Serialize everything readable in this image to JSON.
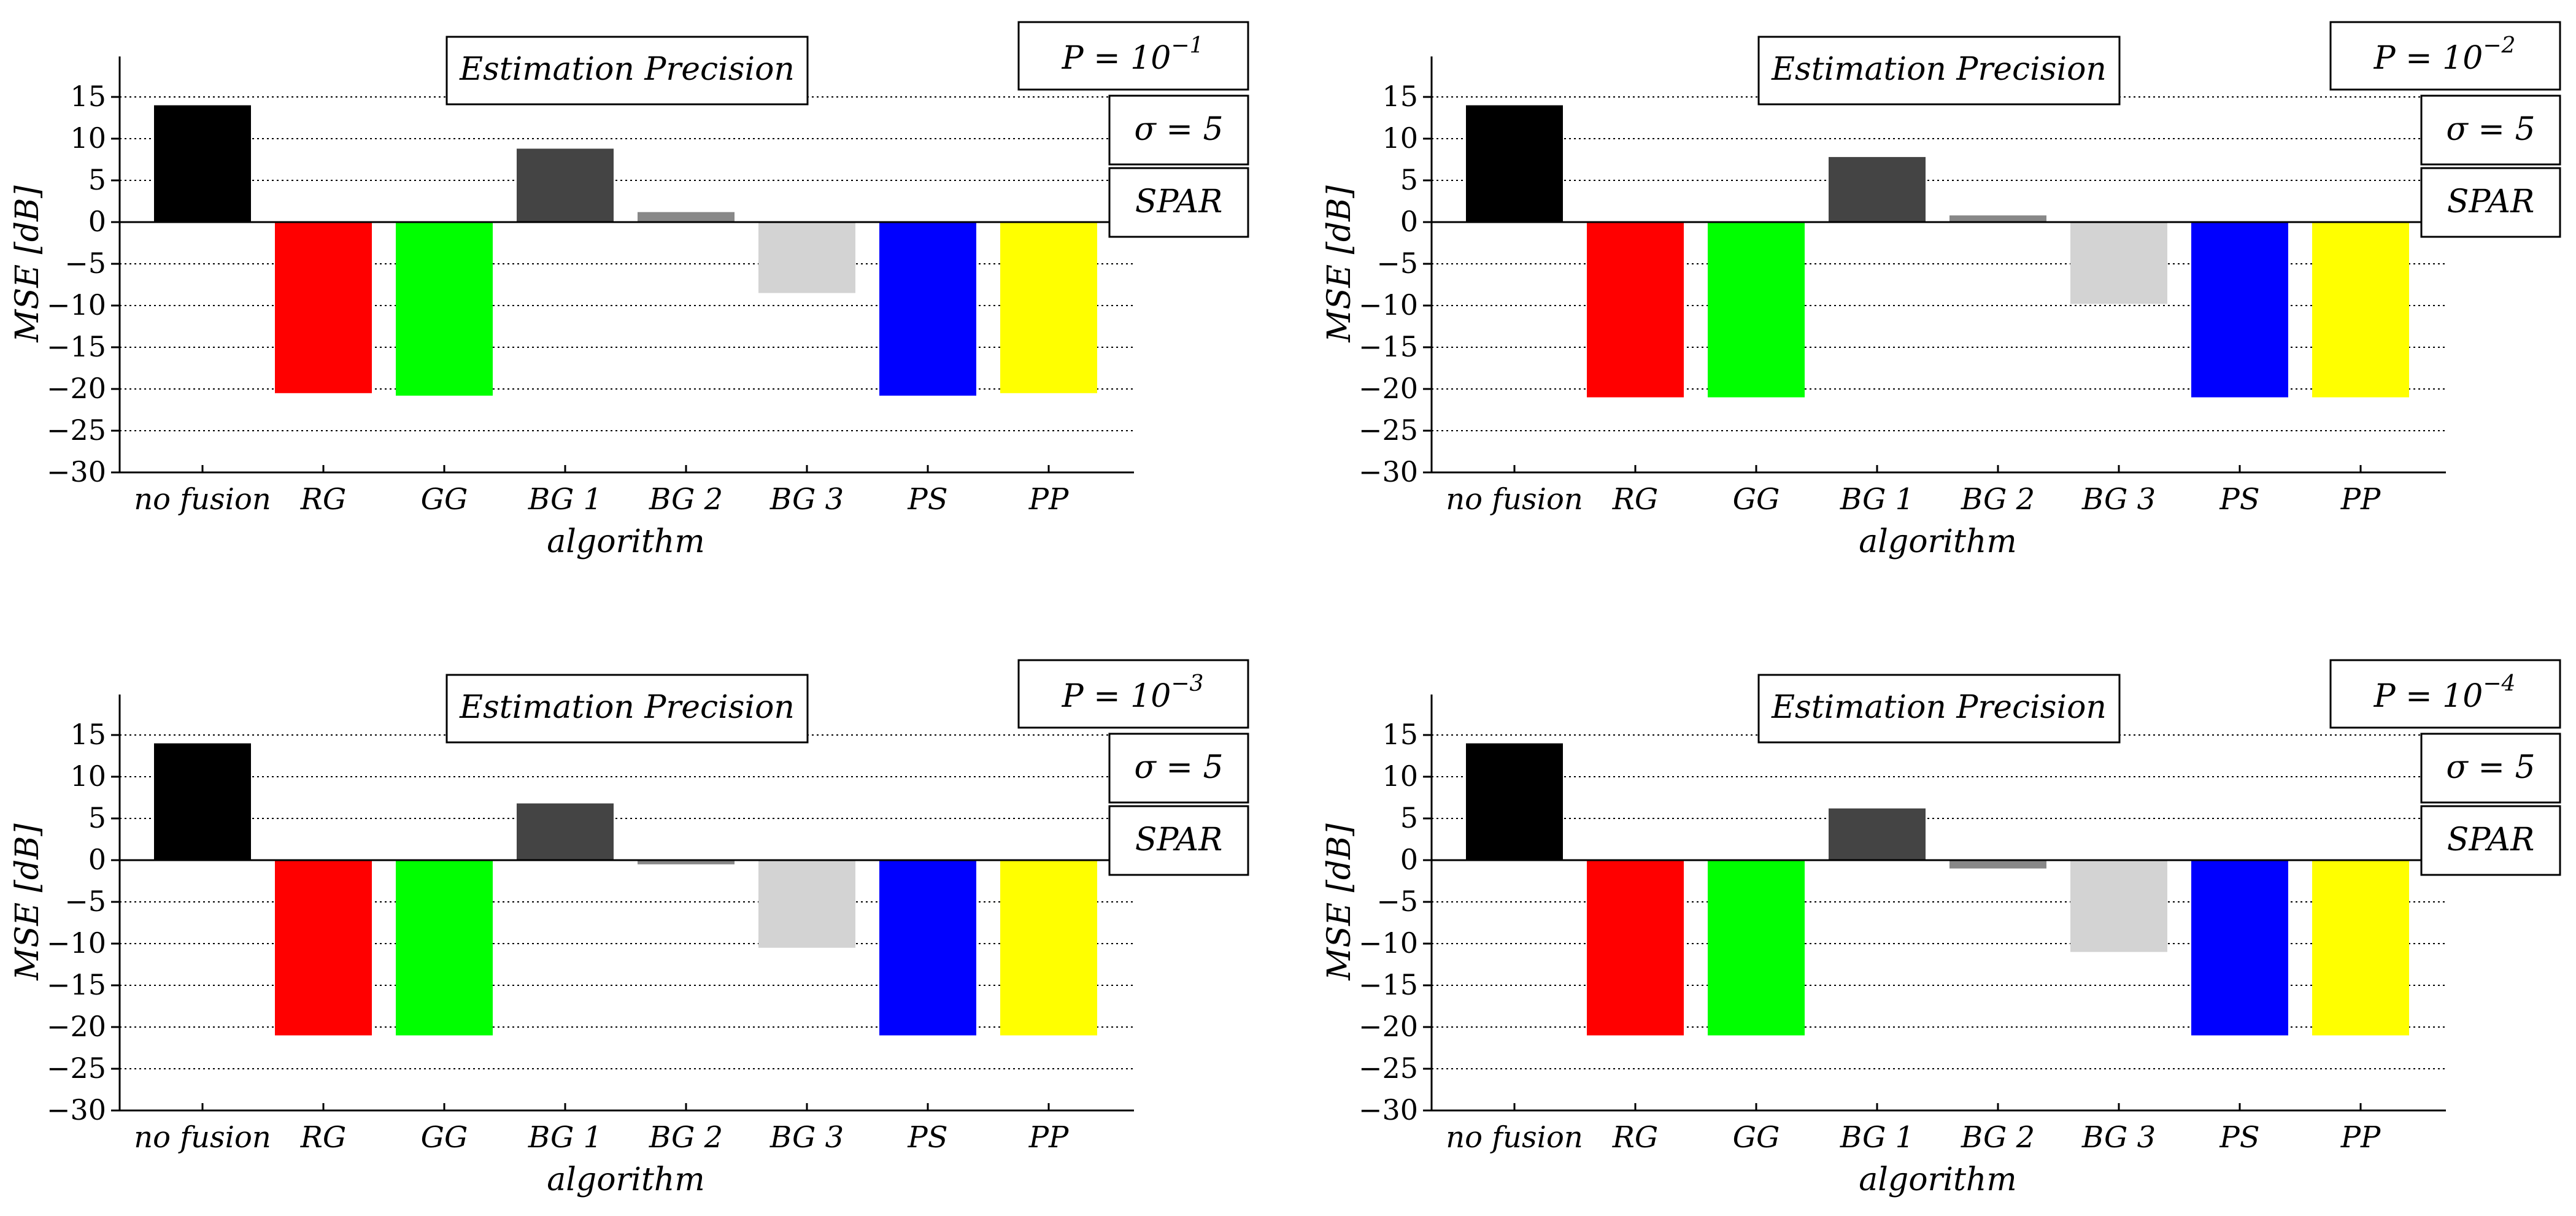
{
  "chart_data": [
    {
      "type": "bar",
      "categories": [
        "no fusion",
        "RG",
        "GG",
        "BG 1",
        "BG 2",
        "BG 3",
        "PS",
        "PP"
      ],
      "values": [
        14,
        -20.5,
        -20.8,
        8.8,
        1.2,
        -8.5,
        -20.8,
        -20.5
      ],
      "colors": [
        "#000000",
        "#ff0000",
        "#00ff00",
        "#444444",
        "#888888",
        "#d3d3d3",
        "#0000ff",
        "#ffff00"
      ],
      "title": "Estimation Precision",
      "xlabel": "algorithm",
      "ylabel": "MSE [dB]",
      "ylim": [
        -30,
        20
      ],
      "yticks": [
        15,
        10,
        5,
        0,
        -5,
        -10,
        -15,
        -20,
        -25,
        -30
      ],
      "ytick_labels": [
        "15",
        "10",
        "5",
        "0",
        "−5",
        "−10",
        "−15",
        "−20",
        "−25",
        "−30"
      ],
      "grid": "y-dotted",
      "annotations": {
        "p_base": "P = 10",
        "p_exp": "−1",
        "sigma": "σ = 5",
        "method": "SPAR"
      }
    },
    {
      "type": "bar",
      "categories": [
        "no fusion",
        "RG",
        "GG",
        "BG 1",
        "BG 2",
        "BG 3",
        "PS",
        "PP"
      ],
      "values": [
        14,
        -21,
        -21,
        7.8,
        0.8,
        -9.8,
        -21,
        -21
      ],
      "colors": [
        "#000000",
        "#ff0000",
        "#00ff00",
        "#444444",
        "#888888",
        "#d3d3d3",
        "#0000ff",
        "#ffff00"
      ],
      "title": "Estimation Precision",
      "xlabel": "algorithm",
      "ylabel": "MSE [dB]",
      "ylim": [
        -30,
        20
      ],
      "yticks": [
        15,
        10,
        5,
        0,
        -5,
        -10,
        -15,
        -20,
        -25,
        -30
      ],
      "ytick_labels": [
        "15",
        "10",
        "5",
        "0",
        "−5",
        "−10",
        "−15",
        "−20",
        "−25",
        "−30"
      ],
      "grid": "y-dotted",
      "annotations": {
        "p_base": "P = 10",
        "p_exp": "−2",
        "sigma": "σ = 5",
        "method": "SPAR"
      }
    },
    {
      "type": "bar",
      "categories": [
        "no fusion",
        "RG",
        "GG",
        "BG 1",
        "BG 2",
        "BG 3",
        "PS",
        "PP"
      ],
      "values": [
        14,
        -21,
        -21,
        6.8,
        -0.5,
        -10.5,
        -21,
        -21
      ],
      "colors": [
        "#000000",
        "#ff0000",
        "#00ff00",
        "#444444",
        "#888888",
        "#d3d3d3",
        "#0000ff",
        "#ffff00"
      ],
      "title": "Estimation Precision",
      "xlabel": "algorithm",
      "ylabel": "MSE [dB]",
      "ylim": [
        -30,
        20
      ],
      "yticks": [
        15,
        10,
        5,
        0,
        -5,
        -10,
        -15,
        -20,
        -25,
        -30
      ],
      "ytick_labels": [
        "15",
        "10",
        "5",
        "0",
        "−5",
        "−10",
        "−15",
        "−20",
        "−25",
        "−30"
      ],
      "grid": "y-dotted",
      "annotations": {
        "p_base": "P = 10",
        "p_exp": "−3",
        "sigma": "σ = 5",
        "method": "SPAR"
      }
    },
    {
      "type": "bar",
      "categories": [
        "no fusion",
        "RG",
        "GG",
        "BG 1",
        "BG 2",
        "BG 3",
        "PS",
        "PP"
      ],
      "values": [
        14,
        -21,
        -21,
        6.2,
        -1,
        -11,
        -21,
        -21
      ],
      "colors": [
        "#000000",
        "#ff0000",
        "#00ff00",
        "#444444",
        "#888888",
        "#d3d3d3",
        "#0000ff",
        "#ffff00"
      ],
      "title": "Estimation Precision",
      "xlabel": "algorithm",
      "ylabel": "MSE [dB]",
      "ylim": [
        -30,
        20
      ],
      "yticks": [
        15,
        10,
        5,
        0,
        -5,
        -10,
        -15,
        -20,
        -25,
        -30
      ],
      "ytick_labels": [
        "15",
        "10",
        "5",
        "0",
        "−5",
        "−10",
        "−15",
        "−20",
        "−25",
        "−30"
      ],
      "grid": "y-dotted",
      "annotations": {
        "p_base": "P = 10",
        "p_exp": "−4",
        "sigma": "σ = 5",
        "method": "SPAR"
      }
    }
  ]
}
